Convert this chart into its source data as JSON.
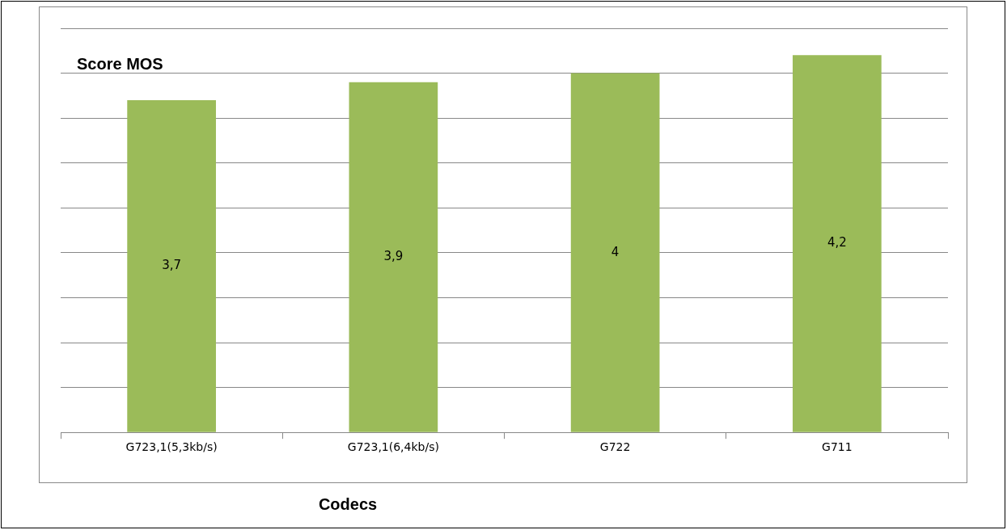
{
  "chart_data": {
    "type": "bar",
    "title": "Score MOS",
    "xlabel": "Codecs",
    "categories": [
      "G723,1(5,3kb/s)",
      "G723,1(6,4kb/s)",
      "G722",
      "G711"
    ],
    "values": [
      3.7,
      3.9,
      4,
      4.2
    ],
    "value_labels": [
      "3,7",
      "3,9",
      "4",
      "4,2"
    ],
    "color": "#9bbb59",
    "ylim": [
      0,
      4.5
    ],
    "yticks": [
      {
        "value": 0,
        "label": null
      },
      {
        "value": 0.5,
        "label": null
      },
      {
        "value": 1,
        "label": null
      },
      {
        "value": 1.5,
        "label": null
      },
      {
        "value": 2,
        "label": null
      },
      {
        "value": 2.5,
        "label": null
      },
      {
        "value": 3,
        "label": null
      },
      {
        "value": 3.5,
        "label": null
      },
      {
        "value": 4,
        "label": null
      },
      {
        "value": 4.5,
        "label": null
      }
    ],
    "tick_labels": "x",
    "grid": "y",
    "legend": false
  }
}
